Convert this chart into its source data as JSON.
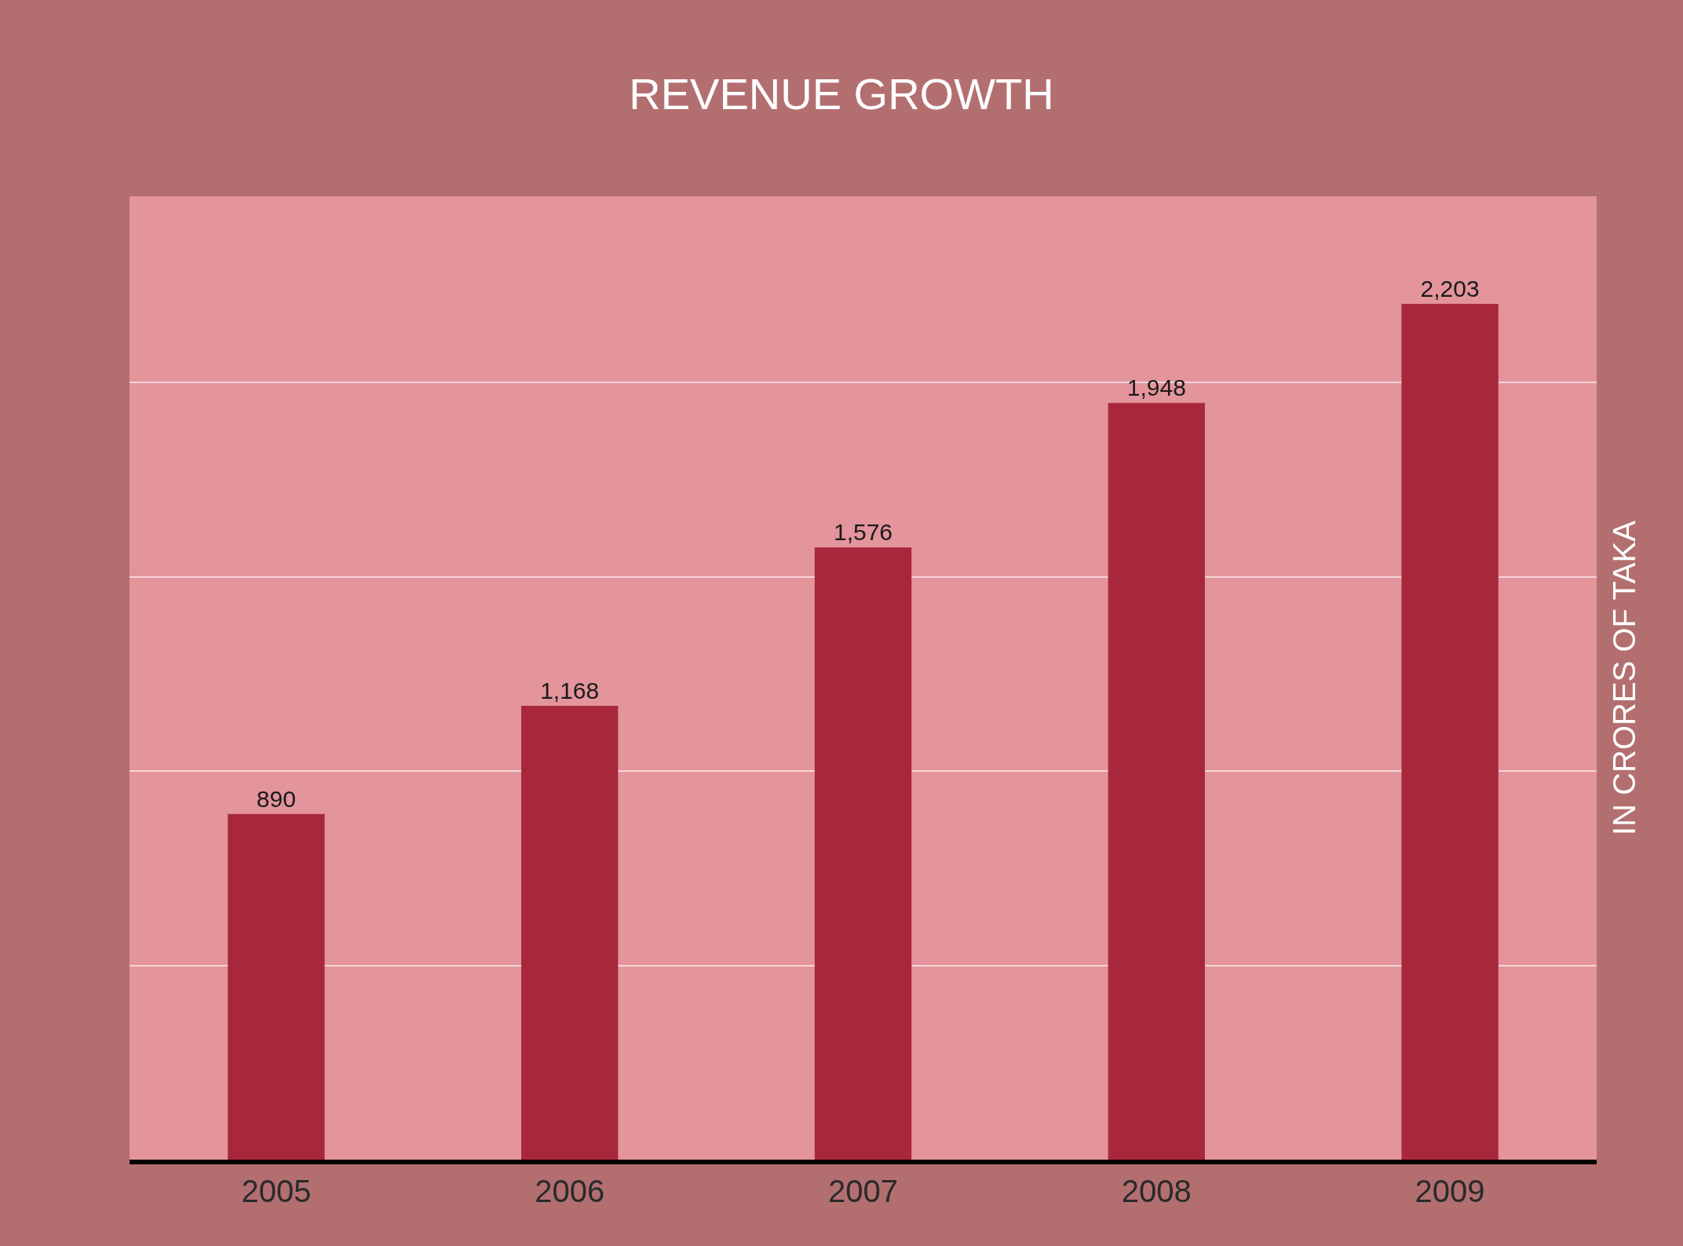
{
  "chart_data": {
    "type": "bar",
    "title": "REVENUE GROWTH",
    "ylabel": "IN CRORES OF TAKA",
    "categories": [
      "2005",
      "2006",
      "2007",
      "2008",
      "2009"
    ],
    "values": [
      890,
      1168,
      1576,
      1948,
      2203
    ],
    "color": "#a8283b",
    "value_labels": [
      "890",
      "1,168",
      "1,576",
      "1,948",
      "2,203"
    ],
    "ylim": [
      0,
      2480
    ],
    "yticks": [
      {
        "value": 500,
        "label": null
      },
      {
        "value": 1000,
        "label": null
      },
      {
        "value": 1500,
        "label": null
      },
      {
        "value": 2000,
        "label": null
      }
    ],
    "grid": "y",
    "tick_labels": "x"
  }
}
